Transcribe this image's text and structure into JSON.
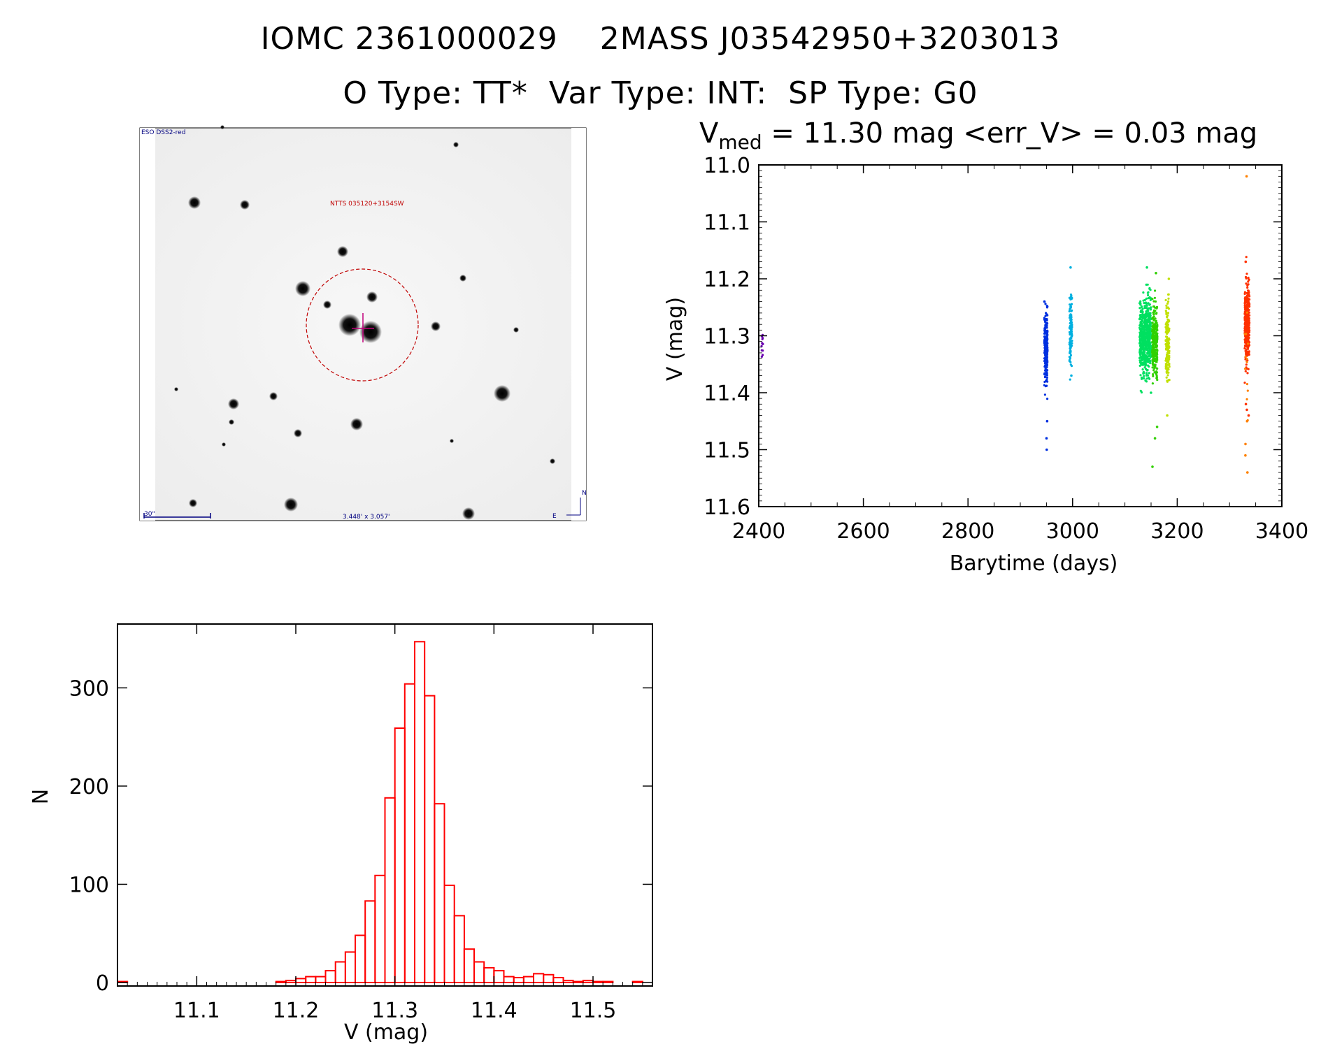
{
  "header": {
    "title_line1": "IOMC 2361000029    2MASS J03542950+3203013",
    "title_line2": "O Type: TT*  Var Type: INT:  SP Type: G0"
  },
  "finder": {
    "survey_label": "ESO DSS2-red",
    "object_label": "NTTS 035120+3154SW",
    "scale_label": "30\"",
    "fov_label": "3.448' x 3.057'",
    "north_label": "N",
    "east_label": "E"
  },
  "lightcurve_title": {
    "v": "V",
    "sub": "med",
    "rest": " = 11.30 mag <err_V> = 0.03 mag"
  },
  "colors": {
    "histogram": "#ff0000",
    "finder_overlay": "#c00000",
    "finder_marks": "#000080"
  },
  "chart_data": [
    {
      "type": "scatter",
      "title": "V_med = 11.30 mag <err_V> = 0.03 mag",
      "xlabel": "Barytime (days)",
      "ylabel": "V (mag)",
      "xlim": [
        2400,
        3400
      ],
      "ylim": [
        11.6,
        11.0
      ],
      "y_inverted": true,
      "xticks": [
        "2400",
        "2600",
        "2800",
        "3000",
        "3200",
        "3400"
      ],
      "yticks": [
        "11.0",
        "11.1",
        "11.2",
        "11.3",
        "11.4",
        "11.5",
        "11.6"
      ],
      "series": [
        {
          "color": "#6a00b0",
          "x_range": [
            2405,
            2408
          ],
          "y_median": 11.32,
          "y_spread": 0.03,
          "n": 12
        },
        {
          "color": "#0030e0",
          "x_range": [
            2946,
            2952
          ],
          "y_median": 11.32,
          "y_spread": 0.07,
          "n": 220,
          "extremes": [
            11.48,
            11.5,
            11.45,
            11.24
          ]
        },
        {
          "color": "#00b0e0",
          "x_range": [
            2994,
            2999
          ],
          "y_median": 11.29,
          "y_spread": 0.06,
          "n": 130,
          "extremes": [
            11.18,
            11.37
          ]
        },
        {
          "color": "#00e060",
          "x_range": [
            3128,
            3150
          ],
          "y_median": 11.3,
          "y_spread": 0.07,
          "n": 600,
          "extremes": [
            11.18,
            11.4
          ]
        },
        {
          "color": "#30d000",
          "x_range": [
            3152,
            3162
          ],
          "y_median": 11.31,
          "y_spread": 0.07,
          "n": 260,
          "extremes": [
            11.19,
            11.46,
            11.53,
            11.48
          ]
        },
        {
          "color": "#c0e000",
          "x_range": [
            3178,
            3185
          ],
          "y_median": 11.31,
          "y_spread": 0.07,
          "n": 160,
          "extremes": [
            11.2,
            11.44
          ]
        },
        {
          "color": "#ff3000",
          "x_range": [
            3329,
            3338
          ],
          "y_median": 11.28,
          "y_spread": 0.07,
          "n": 340,
          "extremes": [
            11.17,
            11.42,
            11.43,
            11.44
          ]
        },
        {
          "color": "#ff8000",
          "x_range": [
            3329,
            3336
          ],
          "y_median": 11.35,
          "y_spread": 0.1,
          "n": 12,
          "extremes": [
            11.02,
            11.49,
            11.51,
            11.54,
            11.45
          ]
        }
      ]
    },
    {
      "type": "bar",
      "title": "",
      "xlabel": "V (mag)",
      "ylabel": "N",
      "xlim": [
        11.02,
        11.56
      ],
      "ylim": [
        0,
        365
      ],
      "xticks": [
        "11.1",
        "11.2",
        "11.3",
        "11.4",
        "11.5"
      ],
      "yticks": [
        "0",
        "100",
        "200",
        "300"
      ],
      "bin_width": 0.01,
      "bin_start": 11.02,
      "values": [
        1,
        0,
        0,
        0,
        0,
        0,
        0,
        0,
        0,
        0,
        0,
        0,
        0,
        0,
        0,
        0,
        1,
        2,
        4,
        6,
        6,
        12,
        21,
        31,
        48,
        83,
        109,
        188,
        259,
        304,
        347,
        292,
        182,
        99,
        68,
        34,
        21,
        15,
        12,
        6,
        5,
        6,
        9,
        8,
        5,
        2,
        1,
        2,
        1,
        1,
        0,
        0,
        1,
        0
      ]
    }
  ]
}
